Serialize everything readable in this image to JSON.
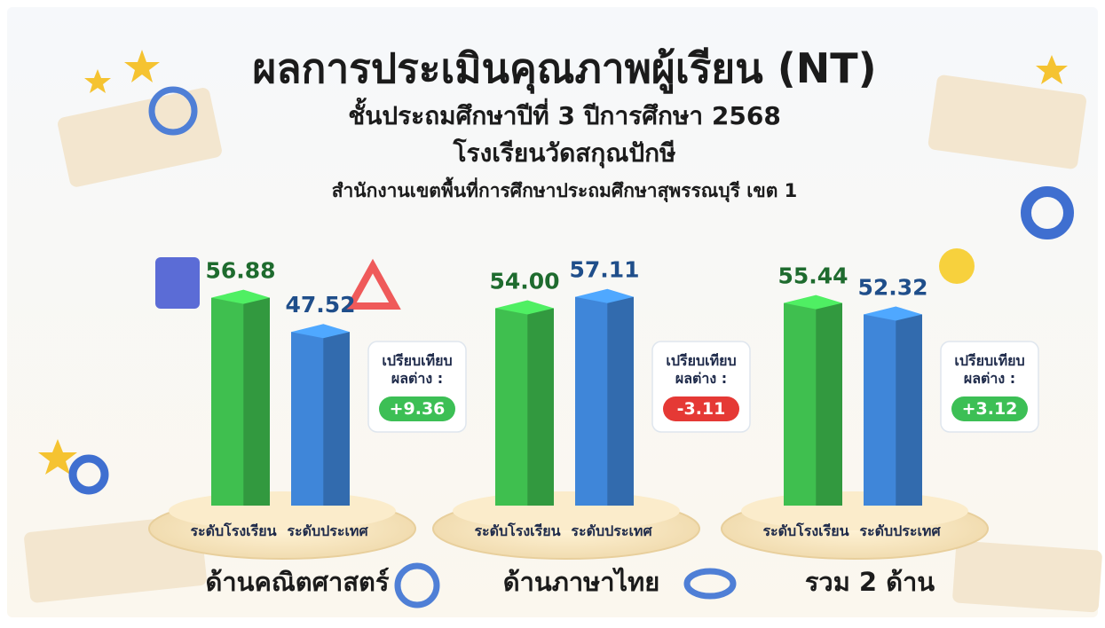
{
  "chart_data": {
    "type": "bar3d",
    "title": "ผลการประเมินคุณภาพผู้เรียน (NT)",
    "subtitles": [
      "ชั้นประถมศึกษาปีที่ 3 ปีการศึกษา 2568",
      "โรงเรียนวัดสกุณปักษี",
      "สำนักงานเขตพื้นที่การศึกษาประถมศึกษาสุพรรณบุรี เขต 1"
    ],
    "categories": [
      "ด้านคณิตศาสตร์",
      "ด้านภาษาไทย",
      "รวม 2 ด้าน"
    ],
    "series": [
      {
        "name": "ระดับโรงเรียน",
        "color": "#3fbf4f",
        "label_color": "#1e6b2e",
        "values": [
          56.88,
          54.0,
          55.44
        ],
        "value_labels": [
          "56.88",
          "54.00",
          "55.44"
        ]
      },
      {
        "name": "ระดับประเทศ",
        "color": "#3f86d9",
        "label_color": "#1f4e8a",
        "values": [
          47.52,
          57.11,
          52.32
        ],
        "value_labels": [
          "47.52",
          "57.11",
          "52.32"
        ]
      }
    ],
    "differences": {
      "label": [
        "เปรียบเทียบ",
        "ผลต่าง :"
      ],
      "values": [
        9.36,
        -3.11,
        3.12
      ],
      "value_labels": [
        "+9.36",
        "-3.11",
        "+3.12"
      ],
      "positive_color": "#3cbf55",
      "negative_color": "#e53935"
    }
  }
}
